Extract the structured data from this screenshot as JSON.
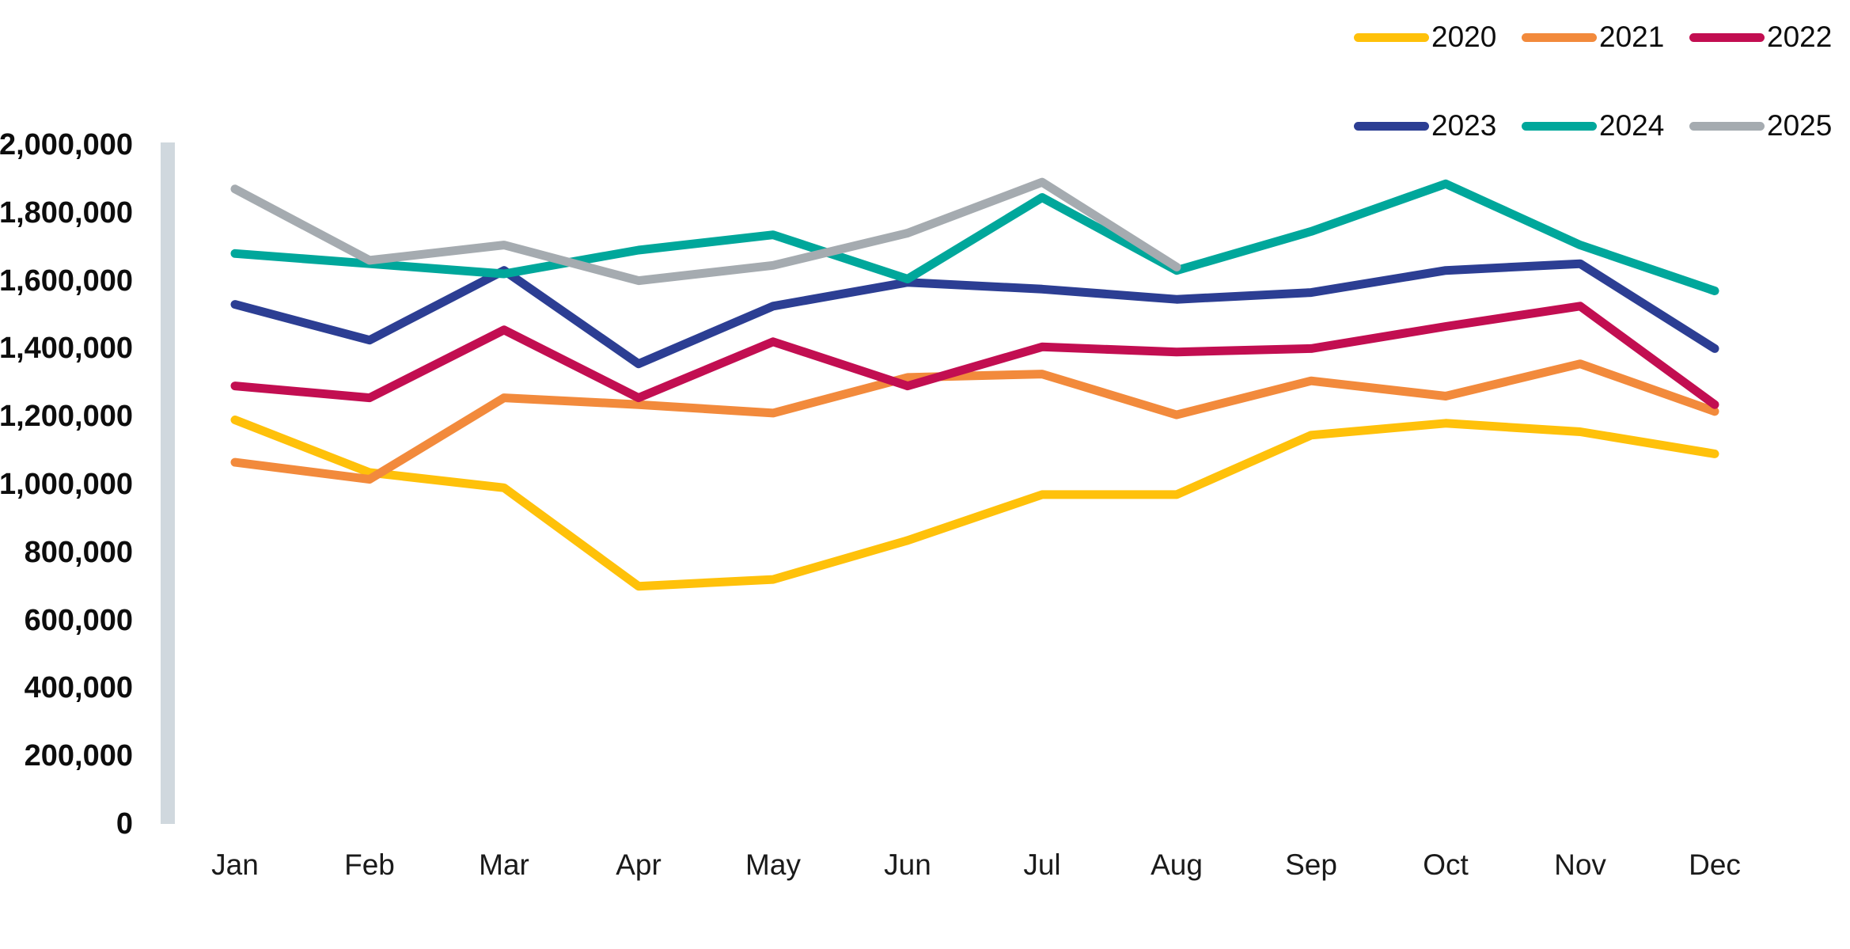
{
  "chart_data": {
    "type": "line",
    "title": "",
    "categories": [
      "Jan",
      "Feb",
      "Mar",
      "Apr",
      "May",
      "Jun",
      "Jul",
      "Aug",
      "Sep",
      "Oct",
      "Nov",
      "Dec"
    ],
    "y_axis": {
      "min": 0,
      "max": 2000000,
      "tick_step": 200000,
      "tick_labels_top_to_bottom": [
        "2,000,000",
        "1,800,000",
        "1,600,000",
        "1,400,000",
        "1,200,000",
        "1,000,000",
        "800,000",
        "600,000",
        "400,000",
        "200,000",
        "0"
      ]
    },
    "grid": "none",
    "legend_position": "top-right",
    "legend_rows": [
      [
        "2020",
        "2021",
        "2022"
      ],
      [
        "2023",
        "2024",
        "2025"
      ]
    ],
    "axis_bar_color": "#d0d8de",
    "series": [
      {
        "name": "2020",
        "color": "#FFC10A",
        "values": [
          1190000,
          1035000,
          990000,
          700000,
          720000,
          835000,
          970000,
          970000,
          1145000,
          1180000,
          1155000,
          1090000
        ]
      },
      {
        "name": "2021",
        "color": "#F28A3C",
        "values": [
          1065000,
          1015000,
          1255000,
          1235000,
          1210000,
          1315000,
          1325000,
          1205000,
          1305000,
          1260000,
          1355000,
          1215000
        ]
      },
      {
        "name": "2022",
        "color": "#C20E51",
        "values": [
          1290000,
          1255000,
          1455000,
          1255000,
          1420000,
          1290000,
          1405000,
          1390000,
          1400000,
          1465000,
          1525000,
          1235000
        ]
      },
      {
        "name": "2023",
        "color": "#2C3E93",
        "values": [
          1530000,
          1425000,
          1630000,
          1355000,
          1525000,
          1595000,
          1575000,
          1545000,
          1565000,
          1630000,
          1650000,
          1400000
        ]
      },
      {
        "name": "2024",
        "color": "#00A79B",
        "values": [
          1680000,
          1650000,
          1620000,
          1690000,
          1735000,
          1605000,
          1845000,
          1630000,
          1745000,
          1885000,
          1705000,
          1570000
        ]
      },
      {
        "name": "2025",
        "color": "#A5ABB0",
        "values": [
          1870000,
          1660000,
          1705000,
          1600000,
          1645000,
          1740000,
          1890000,
          1640000
        ]
      }
    ]
  }
}
